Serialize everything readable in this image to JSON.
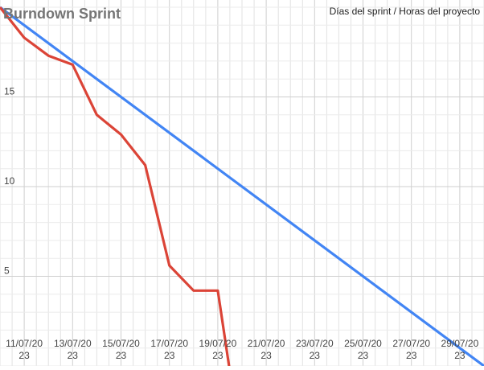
{
  "chart_data": {
    "type": "line",
    "title": "Burndown Sprint",
    "legend_text": "Días del sprint / Horas del proyecto",
    "legend_position": "top-right",
    "grid": true,
    "x_day_start": "10/07/2023",
    "x_day_end": "30/07/2023",
    "x_tick_labels": [
      {
        "date": "11/07/2023",
        "line1": "11/07/20",
        "line2": "23"
      },
      {
        "date": "13/07/2023",
        "line1": "13/07/20",
        "line2": "23"
      },
      {
        "date": "15/07/2023",
        "line1": "15/07/20",
        "line2": "23"
      },
      {
        "date": "17/07/2023",
        "line1": "17/07/20",
        "line2": "23"
      },
      {
        "date": "19/07/2023",
        "line1": "19/07/20",
        "line2": "23"
      },
      {
        "date": "21/07/2023",
        "line1": "21/07/20",
        "line2": "23"
      },
      {
        "date": "23/07/2023",
        "line1": "23/07/20",
        "line2": "23"
      },
      {
        "date": "25/07/2023",
        "line1": "25/07/20",
        "line2": "23"
      },
      {
        "date": "27/07/2023",
        "line1": "27/07/20",
        "line2": "23"
      },
      {
        "date": "29/07/2023",
        "line1": "29/07/20",
        "line2": "23"
      }
    ],
    "y_ticks": [
      5,
      10,
      15
    ],
    "ylim": [
      0,
      20
    ],
    "series": [
      {
        "color": "#4285f4",
        "points": [
          {
            "x": "10/07/2023",
            "y": 20
          },
          {
            "x": "30/07/2023",
            "y": 0
          }
        ]
      },
      {
        "color": "#db4437",
        "points": [
          {
            "x": "10/07/2023",
            "y": 20
          },
          {
            "x": "11/07/2023",
            "y": 18.3
          },
          {
            "x": "12/07/2023",
            "y": 17.3
          },
          {
            "x": "13/07/2023",
            "y": 16.8
          },
          {
            "x": "14/07/2023",
            "y": 14
          },
          {
            "x": "15/07/2023",
            "y": 12.9
          },
          {
            "x": "16/07/2023",
            "y": 11.2
          },
          {
            "x": "17/07/2023",
            "y": 5.6
          },
          {
            "x": "18/07/2023",
            "y": 4.2
          },
          {
            "x": "19/07/2023",
            "y": 4.2
          },
          {
            "x": "19.5/07/2023",
            "y": -0.3
          }
        ]
      }
    ]
  }
}
